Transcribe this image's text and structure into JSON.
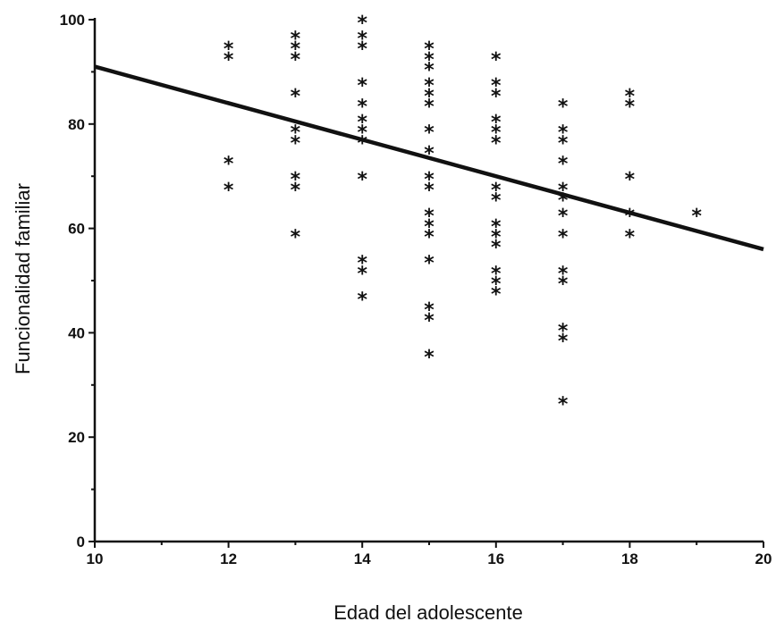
{
  "chart_data": {
    "type": "scatter",
    "title": "",
    "xlabel": "Edad del adolescente",
    "ylabel": "Funcionalidad familiar",
    "xlim": [
      10,
      20
    ],
    "ylim": [
      0,
      100
    ],
    "xticks": [
      10,
      12,
      14,
      16,
      18,
      20
    ],
    "yticks": [
      0,
      20,
      40,
      60,
      80,
      100
    ],
    "grid": false,
    "marker": "asterisk",
    "color": "#111111",
    "points": [
      {
        "x": 12,
        "y": 95
      },
      {
        "x": 12,
        "y": 93
      },
      {
        "x": 12,
        "y": 73
      },
      {
        "x": 12,
        "y": 68
      },
      {
        "x": 13,
        "y": 97
      },
      {
        "x": 13,
        "y": 95
      },
      {
        "x": 13,
        "y": 93
      },
      {
        "x": 13,
        "y": 86
      },
      {
        "x": 13,
        "y": 79
      },
      {
        "x": 13,
        "y": 77
      },
      {
        "x": 13,
        "y": 70
      },
      {
        "x": 13,
        "y": 68
      },
      {
        "x": 13,
        "y": 59
      },
      {
        "x": 14,
        "y": 100
      },
      {
        "x": 14,
        "y": 97
      },
      {
        "x": 14,
        "y": 95
      },
      {
        "x": 14,
        "y": 88
      },
      {
        "x": 14,
        "y": 84
      },
      {
        "x": 14,
        "y": 81
      },
      {
        "x": 14,
        "y": 79
      },
      {
        "x": 14,
        "y": 77
      },
      {
        "x": 14,
        "y": 70
      },
      {
        "x": 14,
        "y": 54
      },
      {
        "x": 14,
        "y": 52
      },
      {
        "x": 14,
        "y": 47
      },
      {
        "x": 15,
        "y": 95
      },
      {
        "x": 15,
        "y": 93
      },
      {
        "x": 15,
        "y": 91
      },
      {
        "x": 15,
        "y": 88
      },
      {
        "x": 15,
        "y": 86
      },
      {
        "x": 15,
        "y": 84
      },
      {
        "x": 15,
        "y": 79
      },
      {
        "x": 15,
        "y": 75
      },
      {
        "x": 15,
        "y": 70
      },
      {
        "x": 15,
        "y": 68
      },
      {
        "x": 15,
        "y": 63
      },
      {
        "x": 15,
        "y": 61
      },
      {
        "x": 15,
        "y": 59
      },
      {
        "x": 15,
        "y": 54
      },
      {
        "x": 15,
        "y": 45
      },
      {
        "x": 15,
        "y": 43
      },
      {
        "x": 15,
        "y": 36
      },
      {
        "x": 16,
        "y": 93
      },
      {
        "x": 16,
        "y": 88
      },
      {
        "x": 16,
        "y": 86
      },
      {
        "x": 16,
        "y": 81
      },
      {
        "x": 16,
        "y": 79
      },
      {
        "x": 16,
        "y": 77
      },
      {
        "x": 16,
        "y": 68
      },
      {
        "x": 16,
        "y": 66
      },
      {
        "x": 16,
        "y": 61
      },
      {
        "x": 16,
        "y": 59
      },
      {
        "x": 16,
        "y": 57
      },
      {
        "x": 16,
        "y": 52
      },
      {
        "x": 16,
        "y": 50
      },
      {
        "x": 16,
        "y": 48
      },
      {
        "x": 17,
        "y": 84
      },
      {
        "x": 17,
        "y": 79
      },
      {
        "x": 17,
        "y": 77
      },
      {
        "x": 17,
        "y": 73
      },
      {
        "x": 17,
        "y": 68
      },
      {
        "x": 17,
        "y": 66
      },
      {
        "x": 17,
        "y": 63
      },
      {
        "x": 17,
        "y": 59
      },
      {
        "x": 17,
        "y": 52
      },
      {
        "x": 17,
        "y": 50
      },
      {
        "x": 17,
        "y": 41
      },
      {
        "x": 17,
        "y": 39
      },
      {
        "x": 17,
        "y": 27
      },
      {
        "x": 18,
        "y": 86
      },
      {
        "x": 18,
        "y": 84
      },
      {
        "x": 18,
        "y": 70
      },
      {
        "x": 18,
        "y": 63
      },
      {
        "x": 18,
        "y": 59
      },
      {
        "x": 19,
        "y": 63
      }
    ],
    "trendline": {
      "x": [
        10,
        20
      ],
      "y": [
        91,
        56
      ]
    }
  }
}
